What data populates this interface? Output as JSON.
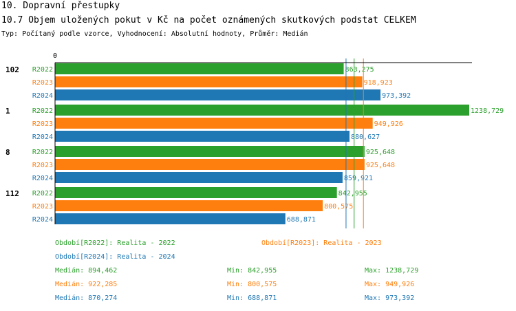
{
  "titles": {
    "line1": "10. Dopravní přestupky",
    "line2": "10.7 Objem uložených pokut v Kč na počet oznámených skutkových podstat CELKEM",
    "line3": "Typ: Počítaný podle vzorce, Vyhodnocení: Absolutní hodnoty, Průměr: Medián"
  },
  "colors": {
    "R2022": "#2ca02c",
    "R2023": "#ff7f0e",
    "R2024": "#1f77b4"
  },
  "chart_data": {
    "type": "bar",
    "orientation": "horizontal",
    "axis_zero_label": "0",
    "xlim": [
      0,
      1300
    ],
    "categories": [
      "102",
      "1",
      "8",
      "112"
    ],
    "series": [
      {
        "name": "R2022",
        "values": [
          863.275,
          1238.729,
          925.648,
          842.955
        ],
        "labels": [
          "863,275",
          "1238,729",
          "925,648",
          "842,955"
        ]
      },
      {
        "name": "R2023",
        "values": [
          918.923,
          949.926,
          925.648,
          800.575
        ],
        "labels": [
          "918,923",
          "949,926",
          "925,648",
          "800,575"
        ]
      },
      {
        "name": "R2024",
        "values": [
          973.392,
          880.627,
          859.921,
          688.871
        ],
        "labels": [
          "973,392",
          "880,627",
          "859,921",
          "688,871"
        ]
      }
    ],
    "median_lines": {
      "R2022": 894.462,
      "R2023": 922.285,
      "R2024": 870.274
    }
  },
  "legend": {
    "r2022": "Období[R2022]: Realita - 2022",
    "r2023": "Období[R2023]: Realita - 2023",
    "r2024": "Období[R2024]: Realita - 2024"
  },
  "stats": [
    {
      "median": "Medián: 894,462",
      "min": "Min: 842,955",
      "max": "Max: 1238,729"
    },
    {
      "median": "Medián: 922,285",
      "min": "Min: 800,575",
      "max": "Max: 949,926"
    },
    {
      "median": "Medián: 870,274",
      "min": "Min: 688,871",
      "max": "Max: 973,392"
    }
  ]
}
